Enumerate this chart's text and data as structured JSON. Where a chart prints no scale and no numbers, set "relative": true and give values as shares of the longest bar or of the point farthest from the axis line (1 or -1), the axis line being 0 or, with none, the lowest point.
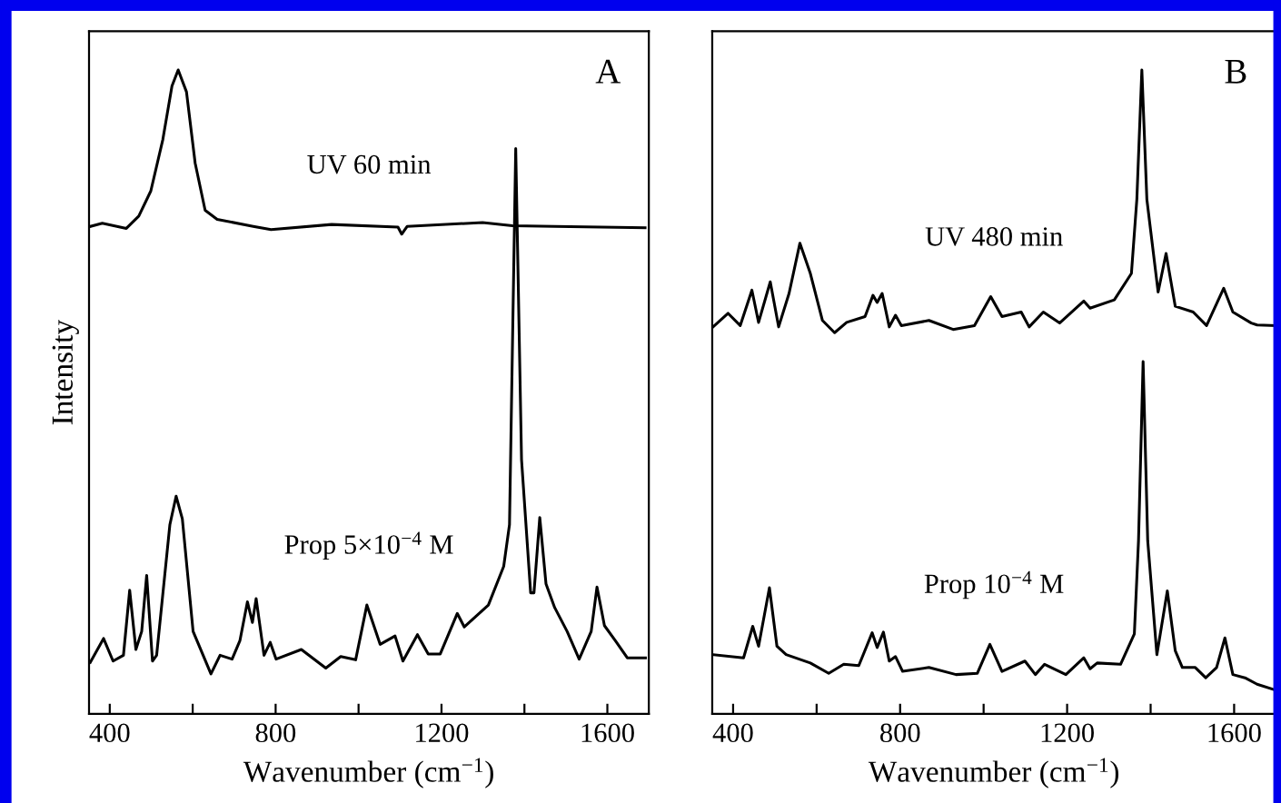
{
  "chart_data": [
    {
      "type": "line",
      "relative": true,
      "xlabel": "Wavenumber (cm$^{−1}$)",
      "ylabel": "Intensity",
      "annotations": [
        "A"
      ],
      "xlim": [
        350,
        1700
      ],
      "xticks": [
        400,
        {
          "value": 600,
          "label": null
        },
        800,
        {
          "value": 1000,
          "label": null
        },
        1200,
        {
          "value": 1400,
          "label": null
        },
        1600
      ],
      "tick_labels": "x",
      "grid": false,
      "legend": false,
      "line_style": "solid",
      "marker": "none",
      "series": [
        {
          "name": "UV 60 min",
          "color": "#000000",
          "x": [
            353,
            382,
            440,
            470,
            499,
            528,
            550,
            565,
            585,
            606,
            630,
            659,
            746,
            789,
            935,
            1095,
            1104,
            1117,
            1299,
            1371,
            1473,
            1691
          ],
          "values": [
            0.757,
            0.762,
            0.754,
            0.773,
            0.812,
            0.892,
            0.975,
            1.0,
            0.966,
            0.855,
            0.782,
            0.768,
            0.757,
            0.752,
            0.76,
            0.756,
            0.745,
            0.757,
            0.763,
            0.758,
            0.757,
            0.755
          ]
        },
        {
          "name": "Prop 5×10$^{−4}$ M",
          "color": "#000000",
          "x": [
            353,
            385,
            408,
            433,
            448,
            463,
            477,
            489,
            503,
            513,
            545,
            560,
            575,
            601,
            644,
            666,
            695,
            714,
            732,
            744,
            753,
            772,
            787,
            801,
            862,
            921,
            957,
            993,
            1020,
            1052,
            1088,
            1107,
            1142,
            1168,
            1197,
            1238,
            1255,
            1313,
            1350,
            1364,
            1379,
            1393,
            1415,
            1423,
            1437,
            1452,
            1473,
            1503,
            1532,
            1561,
            1575,
            1593,
            1619,
            1648,
            1692
          ],
          "values": [
            0.08,
            0.117,
            0.082,
            0.091,
            0.192,
            0.1,
            0.128,
            0.215,
            0.082,
            0.091,
            0.294,
            0.338,
            0.303,
            0.128,
            0.062,
            0.091,
            0.085,
            0.114,
            0.174,
            0.142,
            0.179,
            0.091,
            0.111,
            0.085,
            0.1,
            0.071,
            0.089,
            0.084,
            0.169,
            0.108,
            0.121,
            0.082,
            0.123,
            0.093,
            0.093,
            0.156,
            0.135,
            0.169,
            0.229,
            0.294,
            0.878,
            0.395,
            0.188,
            0.188,
            0.305,
            0.202,
            0.165,
            0.128,
            0.085,
            0.128,
            0.197,
            0.137,
            0.114,
            0.087,
            0.087
          ]
        }
      ]
    },
    {
      "type": "line",
      "relative": true,
      "xlabel": "Wavenumber (cm$^{−1}$)",
      "annotations": [
        "B"
      ],
      "xlim": [
        350,
        1700
      ],
      "xticks": [
        400,
        {
          "value": 600,
          "label": null
        },
        800,
        {
          "value": 1000,
          "label": null
        },
        1200,
        {
          "value": 1400,
          "label": null
        },
        1600
      ],
      "tick_labels": "x",
      "grid": false,
      "legend": false,
      "line_style": "solid",
      "marker": "none",
      "series": [
        {
          "name": "UV 480 min",
          "color": "#000000",
          "x": [
            352,
            388,
            417,
            445,
            461,
            489,
            509,
            534,
            560,
            585,
            614,
            643,
            672,
            716,
            735,
            745,
            757,
            774,
            789,
            803,
            869,
            927,
            978,
            1017,
            1044,
            1090,
            1109,
            1143,
            1182,
            1240,
            1255,
            1313,
            1354,
            1367,
            1379,
            1391,
            1418,
            1437,
            1459,
            1502,
            1534,
            1575,
            1597,
            1641,
            1655,
            1699
          ],
          "values": [
            0.601,
            0.622,
            0.603,
            0.658,
            0.608,
            0.671,
            0.601,
            0.653,
            0.731,
            0.684,
            0.611,
            0.592,
            0.608,
            0.617,
            0.65,
            0.639,
            0.653,
            0.601,
            0.619,
            0.603,
            0.611,
            0.597,
            0.603,
            0.648,
            0.617,
            0.624,
            0.601,
            0.624,
            0.607,
            0.641,
            0.63,
            0.643,
            0.684,
            0.799,
            1.0,
            0.799,
            0.655,
            0.715,
            0.633,
            0.624,
            0.603,
            0.661,
            0.624,
            0.607,
            0.604,
            0.603
          ]
        },
        {
          "name": "Prop 10$^{−4}$ M",
          "color": "#000000",
          "x": [
            352,
            425,
            447,
            461,
            487,
            505,
            527,
            585,
            629,
            665,
            701,
            733,
            745,
            760,
            774,
            789,
            806,
            869,
            934,
            985,
            1015,
            1044,
            1099,
            1124,
            1146,
            1197,
            1240,
            1255,
            1272,
            1328,
            1361,
            1371,
            1382,
            1393,
            1415,
            1440,
            1459,
            1476,
            1507,
            1532,
            1558,
            1578,
            1597,
            1626,
            1655,
            1699
          ],
          "values": [
            0.092,
            0.087,
            0.136,
            0.105,
            0.196,
            0.105,
            0.092,
            0.079,
            0.063,
            0.077,
            0.075,
            0.126,
            0.103,
            0.127,
            0.082,
            0.089,
            0.066,
            0.072,
            0.061,
            0.063,
            0.108,
            0.066,
            0.082,
            0.061,
            0.077,
            0.061,
            0.087,
            0.07,
            0.079,
            0.077,
            0.124,
            0.269,
            0.547,
            0.269,
            0.092,
            0.191,
            0.098,
            0.072,
            0.072,
            0.056,
            0.072,
            0.118,
            0.061,
            0.056,
            0.046,
            0.037
          ]
        }
      ]
    }
  ]
}
